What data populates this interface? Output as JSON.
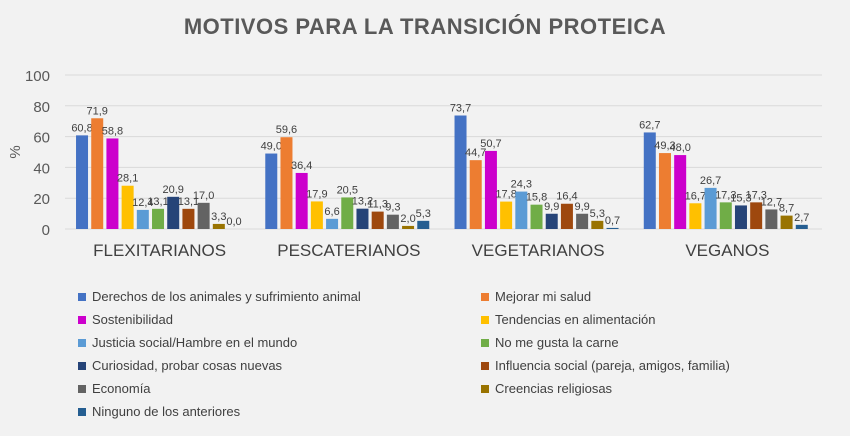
{
  "chart_data": {
    "type": "bar",
    "title": "MOTIVOS PARA LA TRANSICIÓN PROTEICA",
    "ylabel": "%",
    "xlabel": "",
    "ylim": [
      0,
      100
    ],
    "yticks": [
      0,
      20,
      40,
      60,
      80,
      100
    ],
    "grid": true,
    "legend": "bottom",
    "categories": [
      "FLEXITARIANOS",
      "PESCATERIANOS",
      "VEGETARIANOS",
      "VEGANOS"
    ],
    "series": [
      {
        "name": "Derechos de los animales y sufrimiento animal",
        "color": "#4472C4",
        "values": [
          60.8,
          49.0,
          73.7,
          62.7
        ]
      },
      {
        "name": "Mejorar mi salud",
        "color": "#ED7D31",
        "values": [
          71.9,
          59.6,
          44.7,
          49.3
        ]
      },
      {
        "name": "Sostenibilidad",
        "color": "#CC00CC",
        "values": [
          58.8,
          36.4,
          50.7,
          48.0
        ]
      },
      {
        "name": "Tendencias en alimentación",
        "color": "#FFC000",
        "values": [
          28.1,
          17.9,
          17.8,
          16.7
        ]
      },
      {
        "name": "Justicia social/Hambre en el mundo",
        "color": "#5B9BD5",
        "values": [
          12.4,
          6.6,
          24.3,
          26.7
        ]
      },
      {
        "name": "No me gusta la carne",
        "color": "#70AD47",
        "values": [
          13.1,
          20.5,
          15.8,
          17.3
        ]
      },
      {
        "name": "Curiosidad, probar cosas nuevas",
        "color": "#264478",
        "values": [
          20.9,
          13.2,
          9.9,
          15.3
        ]
      },
      {
        "name": "Influencia social (pareja, amigos, familia)",
        "color": "#9E480E",
        "values": [
          13.1,
          11.3,
          16.4,
          17.3
        ]
      },
      {
        "name": "Economía",
        "color": "#636363",
        "values": [
          17.0,
          9.3,
          9.9,
          12.7
        ]
      },
      {
        "name": "Creencias religiosas",
        "color": "#997300",
        "values": [
          3.3,
          2.0,
          5.3,
          8.7
        ]
      },
      {
        "name": "Ninguno de los anteriores",
        "color": "#255E91",
        "values": [
          0.0,
          5.3,
          0.7,
          2.7
        ]
      }
    ]
  }
}
